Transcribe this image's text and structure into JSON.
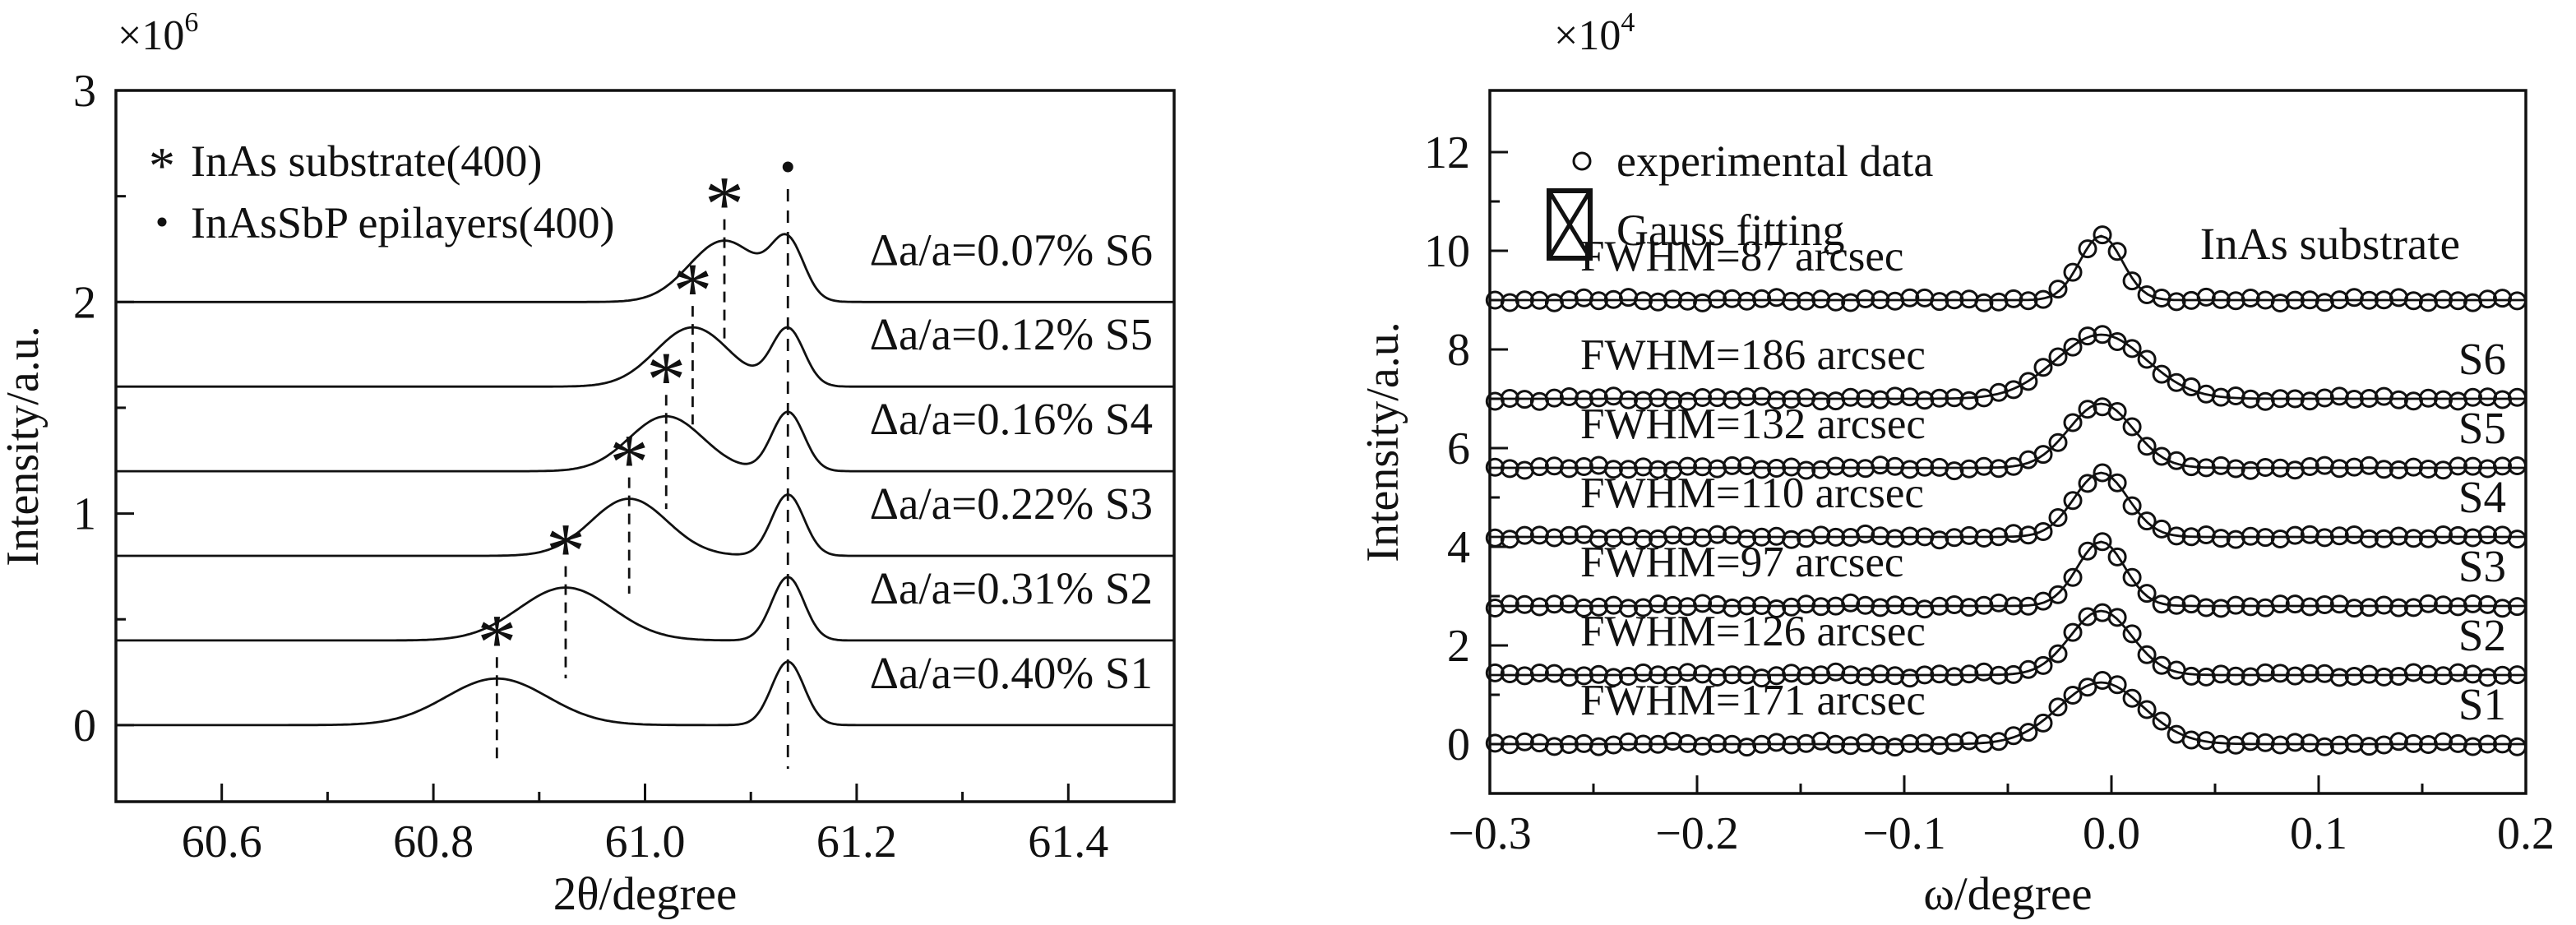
{
  "figure": {
    "background": "#ffffff",
    "ink_color": "#111111",
    "description": "Two-panel XRD figure: left 2theta scans of InAsSbP epilayers on InAs, right omega rocking curves with Gauss fits"
  },
  "chart_data": [
    {
      "type": "line",
      "panel": "left",
      "xlabel": "2θ/degree",
      "ylabel": "Intensity/a.u.",
      "scale_label": {
        "prefix": "×10",
        "exponent": "6"
      },
      "xlim": [
        60.5,
        61.5
      ],
      "ylim": [
        -0.362,
        3.0
      ],
      "xticks": {
        "major": [
          60.6,
          60.8,
          61.0,
          61.2,
          61.4
        ],
        "labels": [
          "60.6",
          "60.8",
          "61.0",
          "61.2",
          "61.4"
        ],
        "minor": [
          60.7,
          60.9,
          61.1,
          61.3
        ]
      },
      "yticks": {
        "major": [
          0,
          1,
          2,
          3
        ],
        "labels": [
          "0",
          "1",
          "2",
          "3"
        ],
        "minor": [
          0.5,
          1.5,
          2.5
        ]
      },
      "grid": false,
      "legend": {
        "position": "upper-left-inside",
        "items": [
          {
            "marker": "asterisk",
            "label": "InAs substrate(400)"
          },
          {
            "marker": "dot",
            "label": "InAsSbP epilayers(400)"
          }
        ]
      },
      "substrate_peak": {
        "two_theta": 61.135,
        "fwhm_deg": 0.036,
        "dashed_guide_line": true,
        "dot_marker_on_top": true
      },
      "series": [
        {
          "name": "S1",
          "label": "Δa/a=0.40% S1",
          "mismatch_percent": 0.4,
          "offset_e6": 0.0,
          "epilayer_peak_2theta": 60.86,
          "epi_amp_e6": 0.22,
          "epi_fwhm_deg": 0.113,
          "sub_amp_e6": 0.3
        },
        {
          "name": "S2",
          "label": "Δa/a=0.31% S2",
          "mismatch_percent": 0.31,
          "offset_e6": 0.4,
          "epilayer_peak_2theta": 60.925,
          "epi_amp_e6": 0.25,
          "epi_fwhm_deg": 0.104,
          "sub_amp_e6": 0.3
        },
        {
          "name": "S3",
          "label": "Δa/a=0.22% S3",
          "mismatch_percent": 0.22,
          "offset_e6": 0.8,
          "epilayer_peak_2theta": 60.985,
          "epi_amp_e6": 0.27,
          "epi_fwhm_deg": 0.085,
          "sub_amp_e6": 0.29
        },
        {
          "name": "S4",
          "label": "Δa/a=0.16% S4",
          "mismatch_percent": 0.16,
          "offset_e6": 1.2,
          "epilayer_peak_2theta": 61.02,
          "epi_amp_e6": 0.26,
          "epi_fwhm_deg": 0.082,
          "sub_amp_e6": 0.28
        },
        {
          "name": "S5",
          "label": "Δa/a=0.12% S5",
          "mismatch_percent": 0.12,
          "offset_e6": 1.6,
          "epilayer_peak_2theta": 61.045,
          "epi_amp_e6": 0.28,
          "epi_fwhm_deg": 0.082,
          "sub_amp_e6": 0.27
        },
        {
          "name": "S6",
          "label": "Δa/a=0.07% S6",
          "mismatch_percent": 0.07,
          "offset_e6": 2.0,
          "epilayer_peak_2theta": 61.075,
          "epi_amp_e6": 0.29,
          "epi_fwhm_deg": 0.078,
          "sub_amp_e6": 0.26
        }
      ]
    },
    {
      "type": "scatter+line",
      "panel": "right",
      "xlabel": "ω/degree",
      "ylabel": "Intensity/a.u.",
      "scale_label": {
        "prefix": "×10",
        "exponent": "4"
      },
      "xlim": [
        -0.3,
        0.2
      ],
      "ylim": [
        -1.0,
        13.25
      ],
      "xticks": {
        "major": [
          -0.3,
          -0.2,
          -0.1,
          0.0,
          0.1,
          0.2
        ],
        "labels": [
          "−0.3",
          "−0.2",
          "−0.1",
          "0.0",
          "0.1",
          "0.2"
        ],
        "minor": [
          -0.25,
          -0.15,
          -0.05,
          0.05,
          0.15
        ]
      },
      "yticks": {
        "major": [
          0,
          2,
          4,
          6,
          8,
          10,
          12
        ],
        "labels": [
          "0",
          "2",
          "4",
          "6",
          "8",
          "10",
          "12"
        ],
        "minor": [
          1,
          3,
          5,
          7,
          9,
          11
        ]
      },
      "grid": false,
      "legend": {
        "position": "upper-left-inside",
        "items": [
          {
            "marker": "circle",
            "label": "experimental data"
          },
          {
            "marker": "crossed-box",
            "label": "Gauss fitting"
          }
        ]
      },
      "peak_center_omega": -0.005,
      "series": [
        {
          "name": "InAs substrate",
          "right_label": "InAs substrate",
          "fwhm_label": "FWHM=87 arcsec",
          "fwhm_arcsec": 87,
          "offset_e4": 9.0,
          "amp_e4": 1.3
        },
        {
          "name": "S6",
          "right_label": "S6",
          "fwhm_label": "FWHM=186 arcsec",
          "fwhm_arcsec": 186,
          "offset_e4": 7.0,
          "amp_e4": 1.3
        },
        {
          "name": "S5",
          "right_label": "S5",
          "fwhm_label": "FWHM=132 arcsec",
          "fwhm_arcsec": 132,
          "offset_e4": 5.6,
          "amp_e4": 1.3
        },
        {
          "name": "S4",
          "right_label": "S4",
          "fwhm_label": "FWHM=110 arcsec",
          "fwhm_arcsec": 110,
          "offset_e4": 4.2,
          "amp_e4": 1.3
        },
        {
          "name": "S3",
          "right_label": "S3",
          "fwhm_label": "FWHM=97 arcsec",
          "fwhm_arcsec": 97,
          "offset_e4": 2.8,
          "amp_e4": 1.3
        },
        {
          "name": "S2",
          "right_label": "S2",
          "fwhm_label": "FWHM=126 arcsec",
          "fwhm_arcsec": 126,
          "offset_e4": 1.4,
          "amp_e4": 1.3
        },
        {
          "name": "S1",
          "right_label": "S1",
          "fwhm_label": "FWHM=171 arcsec",
          "fwhm_arcsec": 171,
          "offset_e4": 0.0,
          "amp_e4": 1.25
        }
      ]
    }
  ]
}
